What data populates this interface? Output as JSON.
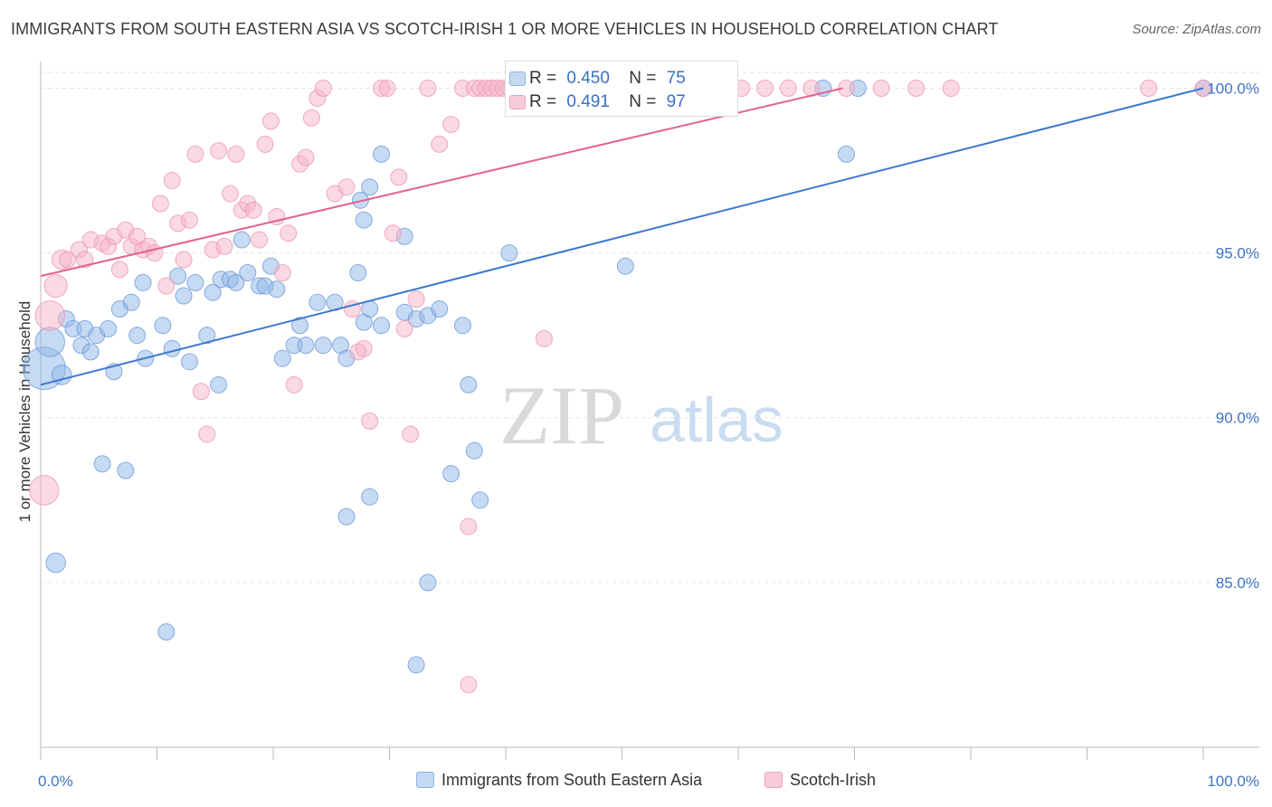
{
  "header": {
    "title": "IMMIGRANTS FROM SOUTH EASTERN ASIA VS SCOTCH-IRISH 1 OR MORE VEHICLES IN HOUSEHOLD CORRELATION CHART",
    "source": "Source: ZipAtlas.com"
  },
  "legend": {
    "r_label": "R =",
    "n_label": "N =",
    "blue": {
      "r": "0.450",
      "n": "75"
    },
    "pink": {
      "r": "0.491",
      "n": "97"
    }
  },
  "watermark": {
    "zip": "ZIP",
    "atlas": "atlas"
  },
  "chart_data": {
    "type": "scatter",
    "title": "IMMIGRANTS FROM SOUTH EASTERN ASIA VS SCOTCH-IRISH 1 OR MORE VEHICLES IN HOUSEHOLD CORRELATION CHART",
    "ylabel": "1 or more Vehicles in Household",
    "xlabel": "",
    "x_tick_labels": [
      "0.0%",
      "100.0%"
    ],
    "y_tick_labels": [
      "85.0%",
      "90.0%",
      "95.0%",
      "100.0%"
    ],
    "y_ticks": [
      85,
      90,
      95,
      100
    ],
    "xlim": [
      0,
      100
    ],
    "ylim": [
      80.0,
      100.7
    ],
    "grid": "horizontal dashed",
    "series": [
      {
        "name": "Immigrants from South Eastern Asia",
        "color": "#8fb6e8",
        "edge": "#6d9ad8",
        "trend": {
          "color": "#3b78d0",
          "x": [
            0,
            100
          ],
          "y": [
            91.0,
            100.0
          ]
        },
        "points": [
          [
            0.3,
            91.5,
            26
          ],
          [
            0.8,
            92.3,
            18
          ],
          [
            1.8,
            91.3,
            12
          ],
          [
            2.2,
            93.0,
            10
          ],
          [
            2.8,
            92.7,
            10
          ],
          [
            3.5,
            92.2,
            10
          ],
          [
            3.8,
            92.7,
            10
          ],
          [
            4.3,
            92.0,
            10
          ],
          [
            4.8,
            92.5,
            10
          ],
          [
            5.8,
            92.7,
            10
          ],
          [
            6.3,
            91.4,
            10
          ],
          [
            6.8,
            93.3,
            10
          ],
          [
            7.8,
            93.5,
            10
          ],
          [
            8.3,
            92.5,
            10
          ],
          [
            9.0,
            91.8,
            10
          ],
          [
            8.8,
            94.1,
            10
          ],
          [
            10.5,
            92.8,
            10
          ],
          [
            11.3,
            92.1,
            10
          ],
          [
            11.8,
            94.3,
            10
          ],
          [
            12.3,
            93.7,
            10
          ],
          [
            12.8,
            91.7,
            10
          ],
          [
            13.3,
            94.1,
            10
          ],
          [
            14.3,
            92.5,
            10
          ],
          [
            14.8,
            93.8,
            10
          ],
          [
            15.5,
            94.2,
            10
          ],
          [
            16.3,
            94.2,
            10
          ],
          [
            16.8,
            94.1,
            10
          ],
          [
            17.3,
            95.4,
            10
          ],
          [
            17.8,
            94.4,
            10
          ],
          [
            18.8,
            94.0,
            10
          ],
          [
            19.3,
            94.0,
            10
          ],
          [
            19.8,
            94.6,
            10
          ],
          [
            20.3,
            93.9,
            10
          ],
          [
            20.8,
            91.8,
            10
          ],
          [
            21.8,
            92.2,
            10
          ],
          [
            22.3,
            92.8,
            10
          ],
          [
            22.8,
            92.2,
            10
          ],
          [
            23.8,
            93.5,
            10
          ],
          [
            24.3,
            92.2,
            10
          ],
          [
            25.3,
            93.5,
            10
          ],
          [
            25.8,
            92.2,
            10
          ],
          [
            26.3,
            91.8,
            10
          ],
          [
            27.3,
            94.4,
            10
          ],
          [
            27.8,
            92.9,
            10
          ],
          [
            28.3,
            93.3,
            10
          ],
          [
            29.3,
            92.8,
            10
          ],
          [
            31.3,
            93.2,
            10
          ],
          [
            32.3,
            93.0,
            10
          ],
          [
            33.3,
            93.1,
            10
          ],
          [
            34.3,
            93.3,
            10
          ],
          [
            36.3,
            92.8,
            10
          ],
          [
            27.5,
            96.6,
            10
          ],
          [
            27.8,
            96.0,
            10
          ],
          [
            28.3,
            97.0,
            10
          ],
          [
            29.3,
            98.0,
            10
          ],
          [
            31.3,
            95.5,
            10
          ],
          [
            36.8,
            91.0,
            10
          ],
          [
            37.3,
            89.0,
            10
          ],
          [
            35.3,
            88.3,
            10
          ],
          [
            37.8,
            87.5,
            10
          ],
          [
            26.3,
            87.0,
            10
          ],
          [
            28.3,
            87.6,
            10
          ],
          [
            10.8,
            83.5,
            10
          ],
          [
            32.3,
            82.5,
            10
          ],
          [
            33.3,
            85.0,
            10
          ],
          [
            1.3,
            85.6,
            12
          ],
          [
            5.3,
            88.6,
            10
          ],
          [
            7.3,
            88.4,
            10
          ],
          [
            15.3,
            91.0,
            10
          ],
          [
            40.3,
            95.0,
            10
          ],
          [
            50.3,
            94.6,
            10
          ],
          [
            67.3,
            100.0,
            10
          ],
          [
            69.3,
            98.0,
            10
          ],
          [
            70.3,
            100.0,
            10
          ],
          [
            100.0,
            100.0,
            10
          ]
        ]
      },
      {
        "name": "Scotch-Irish",
        "color": "#f5b3c8",
        "edge": "#ee97b3",
        "trend": {
          "color": "#e3628f",
          "x": [
            0,
            69
          ],
          "y": [
            94.3,
            100.0
          ]
        },
        "points": [
          [
            0.3,
            87.8,
            18
          ],
          [
            0.8,
            93.1,
            18
          ],
          [
            1.3,
            94.0,
            14
          ],
          [
            1.8,
            94.8,
            12
          ],
          [
            2.3,
            94.8,
            10
          ],
          [
            3.3,
            95.1,
            10
          ],
          [
            3.8,
            94.8,
            10
          ],
          [
            4.3,
            95.4,
            10
          ],
          [
            5.3,
            95.3,
            10
          ],
          [
            5.8,
            95.2,
            10
          ],
          [
            6.3,
            95.5,
            10
          ],
          [
            6.8,
            94.5,
            10
          ],
          [
            7.3,
            95.7,
            10
          ],
          [
            7.8,
            95.2,
            10
          ],
          [
            8.3,
            95.5,
            10
          ],
          [
            8.8,
            95.1,
            10
          ],
          [
            9.3,
            95.2,
            10
          ],
          [
            9.8,
            95.0,
            10
          ],
          [
            10.3,
            96.5,
            10
          ],
          [
            10.8,
            94.0,
            10
          ],
          [
            11.3,
            97.2,
            10
          ],
          [
            11.8,
            95.9,
            10
          ],
          [
            12.3,
            94.8,
            10
          ],
          [
            12.8,
            96.0,
            10
          ],
          [
            13.3,
            98.0,
            10
          ],
          [
            13.8,
            90.8,
            10
          ],
          [
            14.3,
            89.5,
            10
          ],
          [
            14.8,
            95.1,
            10
          ],
          [
            15.3,
            98.1,
            10
          ],
          [
            15.8,
            95.2,
            10
          ],
          [
            16.3,
            96.8,
            10
          ],
          [
            16.8,
            98.0,
            10
          ],
          [
            17.3,
            96.3,
            10
          ],
          [
            17.8,
            96.5,
            10
          ],
          [
            18.3,
            96.3,
            10
          ],
          [
            18.8,
            95.4,
            10
          ],
          [
            19.3,
            98.3,
            10
          ],
          [
            19.8,
            99.0,
            10
          ],
          [
            20.3,
            96.1,
            10
          ],
          [
            20.8,
            94.4,
            10
          ],
          [
            21.3,
            95.6,
            10
          ],
          [
            21.8,
            91.0,
            10
          ],
          [
            22.3,
            97.7,
            10
          ],
          [
            22.8,
            97.9,
            10
          ],
          [
            23.3,
            99.1,
            10
          ],
          [
            23.8,
            99.7,
            10
          ],
          [
            24.3,
            100.0,
            10
          ],
          [
            25.3,
            96.8,
            10
          ],
          [
            26.3,
            97.0,
            10
          ],
          [
            26.8,
            93.3,
            10
          ],
          [
            27.3,
            92.0,
            10
          ],
          [
            27.8,
            92.1,
            10
          ],
          [
            28.3,
            89.9,
            10
          ],
          [
            29.3,
            100.0,
            10
          ],
          [
            29.8,
            100.0,
            10
          ],
          [
            30.3,
            95.6,
            10
          ],
          [
            30.8,
            97.3,
            10
          ],
          [
            31.3,
            92.7,
            10
          ],
          [
            31.8,
            89.5,
            10
          ],
          [
            32.3,
            93.6,
            10
          ],
          [
            33.3,
            100.0,
            10
          ],
          [
            34.3,
            98.3,
            10
          ],
          [
            35.3,
            98.9,
            10
          ],
          [
            36.3,
            100.0,
            10
          ],
          [
            37.3,
            100.0,
            10
          ],
          [
            37.8,
            100.0,
            10
          ],
          [
            38.3,
            100.0,
            10
          ],
          [
            38.8,
            100.0,
            10
          ],
          [
            39.3,
            100.0,
            10
          ],
          [
            39.8,
            100.0,
            10
          ],
          [
            40.3,
            100.0,
            10
          ],
          [
            40.8,
            100.0,
            10
          ],
          [
            41.3,
            100.0,
            10
          ],
          [
            42.3,
            100.0,
            10
          ],
          [
            43.3,
            100.0,
            10
          ],
          [
            44.3,
            100.0,
            10
          ],
          [
            45.3,
            100.0,
            10
          ],
          [
            46.3,
            100.0,
            10
          ],
          [
            47.3,
            100.0,
            10
          ],
          [
            48.3,
            100.0,
            10
          ],
          [
            49.3,
            100.0,
            10
          ],
          [
            50.3,
            100.0,
            10
          ],
          [
            55.3,
            100.0,
            10
          ],
          [
            58.3,
            100.0,
            10
          ],
          [
            60.3,
            100.0,
            10
          ],
          [
            62.3,
            100.0,
            10
          ],
          [
            64.3,
            100.0,
            10
          ],
          [
            66.3,
            100.0,
            10
          ],
          [
            69.3,
            100.0,
            10
          ],
          [
            72.3,
            100.0,
            10
          ],
          [
            75.3,
            100.0,
            10
          ],
          [
            78.3,
            100.0,
            10
          ],
          [
            95.3,
            100.0,
            10
          ],
          [
            100.0,
            100.0,
            10
          ],
          [
            43.3,
            92.4,
            10
          ],
          [
            36.8,
            86.7,
            10
          ],
          [
            36.8,
            81.9,
            10
          ]
        ]
      }
    ]
  },
  "bottom_legend": {
    "blue_label": "Immigrants from South Eastern Asia",
    "pink_label": "Scotch-Irish"
  }
}
